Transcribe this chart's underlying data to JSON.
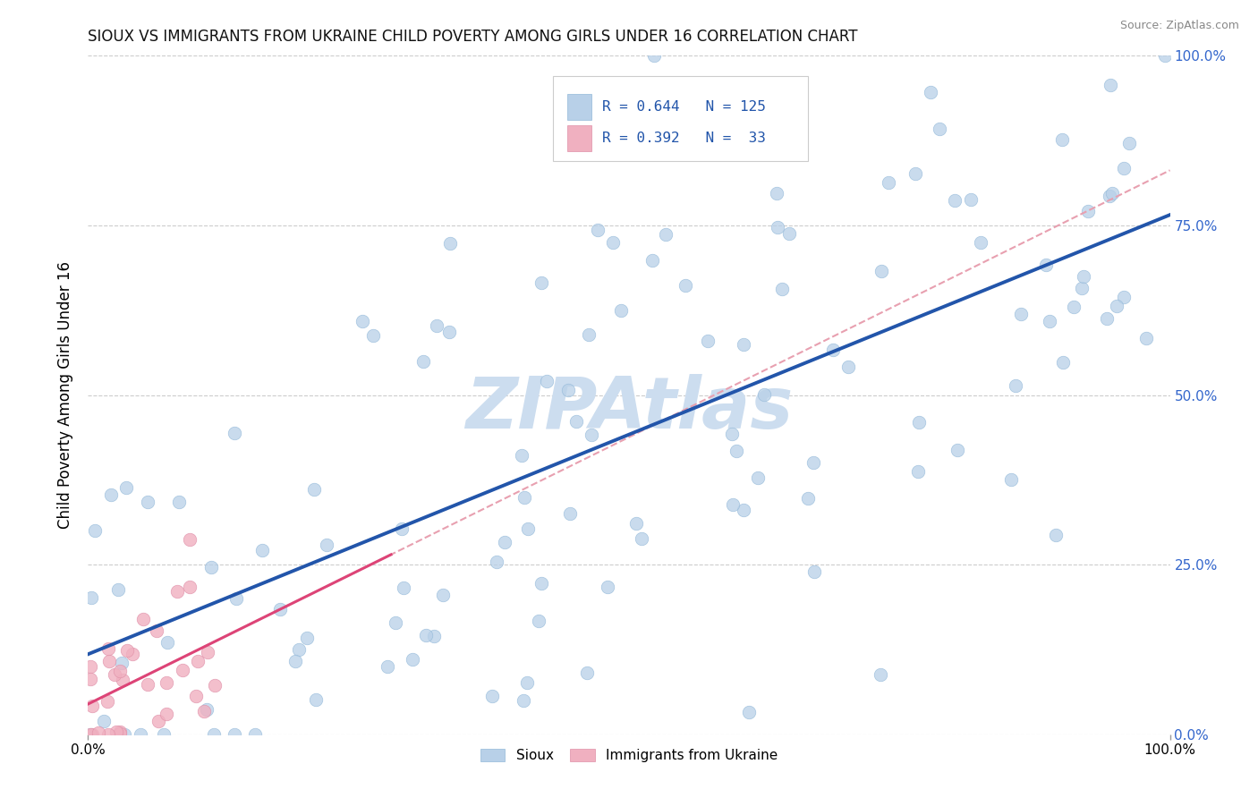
{
  "title": "SIOUX VS IMMIGRANTS FROM UKRAINE CHILD POVERTY AMONG GIRLS UNDER 16 CORRELATION CHART",
  "source": "Source: ZipAtlas.com",
  "ylabel": "Child Poverty Among Girls Under 16",
  "sioux_R": 0.644,
  "sioux_N": 125,
  "ukraine_R": 0.392,
  "ukraine_N": 33,
  "sioux_color": "#b8d0e8",
  "sioux_edge_color": "#92b8d8",
  "sioux_line_color": "#2255aa",
  "ukraine_color": "#f0b0c0",
  "ukraine_edge_color": "#e090a8",
  "ukraine_line_color": "#dd4477",
  "ukraine_dashed_color": "#e8a0b0",
  "watermark_color": "#ccddef",
  "bg_color": "#ffffff",
  "legend_box_color": "#eeeeee",
  "right_tick_color": "#3366cc",
  "grid_color": "#cccccc",
  "title_color": "#111111",
  "source_color": "#888888"
}
